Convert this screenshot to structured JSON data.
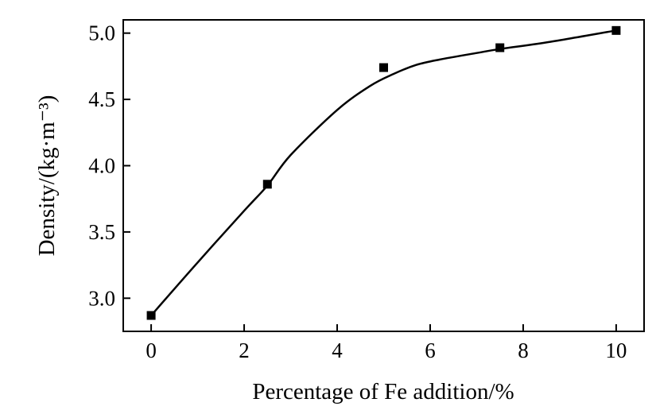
{
  "chart_data": {
    "type": "line",
    "title": "",
    "xlabel": "Percentage of Fe addition/%",
    "ylabel": "Density/(kg·m⁻³)",
    "xlim": [
      -0.6,
      10.6
    ],
    "ylim": [
      2.75,
      5.1
    ],
    "xticks": [
      0,
      2,
      4,
      6,
      8,
      10
    ],
    "xtick_labels": [
      "0",
      "2",
      "4",
      "6",
      "8",
      "10"
    ],
    "yticks": [
      3.0,
      3.5,
      4.0,
      4.5,
      5.0
    ],
    "ytick_labels": [
      "3.0",
      "3.5",
      "4.0",
      "4.5",
      "5.0"
    ],
    "grid": false,
    "series": [
      {
        "marker": "square",
        "color": "#000000",
        "x": [
          0,
          2.5,
          5,
          7.5,
          10
        ],
        "y": [
          2.87,
          3.86,
          4.74,
          4.89,
          5.02
        ]
      }
    ],
    "fit_curve": {
      "color": "#000000",
      "x": [
        0,
        1,
        2,
        2.5,
        3,
        4,
        4.7,
        5.2,
        5.7,
        6.2,
        7,
        7.5,
        8.5,
        10
      ],
      "y": [
        2.87,
        3.27,
        3.66,
        3.85,
        4.08,
        4.42,
        4.6,
        4.69,
        4.76,
        4.8,
        4.85,
        4.88,
        4.93,
        5.02
      ]
    }
  }
}
